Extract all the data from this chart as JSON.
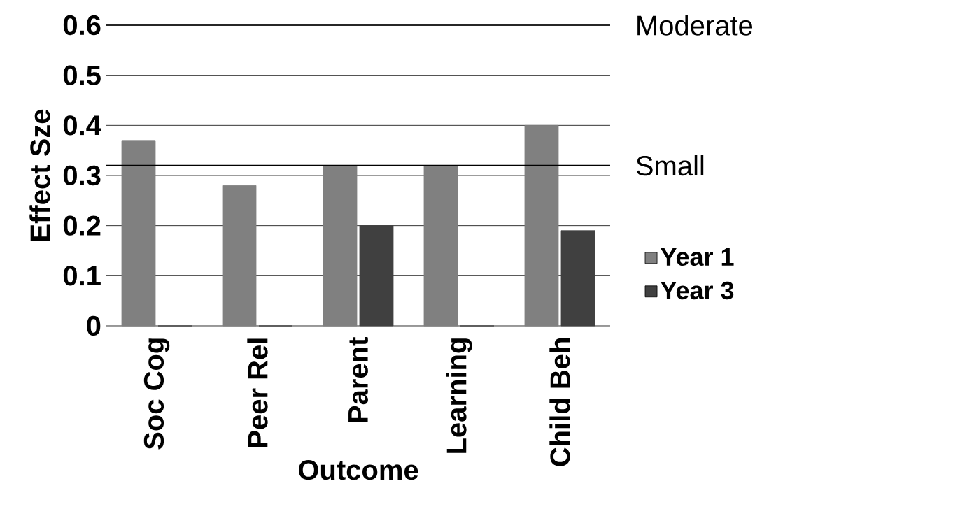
{
  "chart_data": {
    "type": "bar",
    "xlabel": "Outcome",
    "ylabel": "Effect Sze",
    "categories": [
      "Soc Cog",
      "Peer Rel",
      "Parent",
      "Learning",
      "Child Beh"
    ],
    "series": [
      {
        "name": "Year 1",
        "color": "#808080",
        "values": [
          0.37,
          0.28,
          0.32,
          0.32,
          0.4
        ]
      },
      {
        "name": "Year 3",
        "color": "#404040",
        "values": [
          0,
          0,
          0.2,
          0,
          0.19
        ]
      }
    ],
    "ylim": [
      0,
      0.6
    ],
    "yticks": [
      0,
      0.1,
      0.2,
      0.3,
      0.4,
      0.5,
      0.6
    ],
    "ref_lines": [
      {
        "axis": "y",
        "value": 0.6,
        "label": "Moderate"
      },
      {
        "axis": "y",
        "value": 0.32,
        "label": "Small"
      }
    ],
    "grid": "y",
    "legend": "right"
  }
}
